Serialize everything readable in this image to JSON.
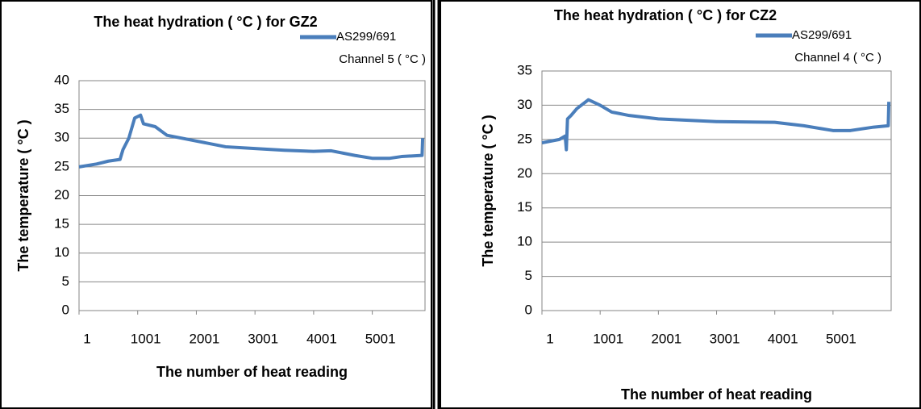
{
  "chart_data": [
    {
      "type": "line",
      "title": "The heat hydration ( °C ) for GZ2",
      "x_label": "The number of heat reading",
      "y_label": "The temperature ( °C )",
      "x": [
        1,
        300,
        500,
        700,
        750,
        850,
        950,
        1050,
        1100,
        1300,
        1500,
        2000,
        2500,
        3000,
        3500,
        4000,
        4300,
        4700,
        5000,
        5300,
        5500,
        5850,
        5860
      ],
      "series": [
        {
          "name": "AS299/691",
          "legend_note": "Channel 5 ( °C )",
          "color": "#4a7ebb",
          "values": [
            25,
            25.5,
            26,
            26.3,
            28,
            30,
            33.5,
            34,
            32.5,
            32,
            30.5,
            29.5,
            28.5,
            28.2,
            27.9,
            27.7,
            27.8,
            27,
            26.5,
            26.5,
            26.8,
            27,
            30
          ]
        }
      ],
      "xlim": [
        1,
        5900
      ],
      "xticks": [
        1,
        1001,
        2001,
        3001,
        4001,
        5001
      ],
      "ylim": [
        0,
        40
      ],
      "yticks": [
        0,
        5,
        10,
        15,
        20,
        25,
        30,
        35,
        40
      ],
      "grid": true
    },
    {
      "type": "line",
      "title": "The heat hydration ( °C ) for CZ2",
      "x_label": "The number of heat reading",
      "y_label": "The temperature ( °C )",
      "x": [
        1,
        300,
        400,
        420,
        440,
        500,
        600,
        800,
        1000,
        1200,
        1500,
        2000,
        3000,
        4000,
        4500,
        5000,
        5300,
        5700,
        5950,
        5960
      ],
      "series": [
        {
          "name": "AS299/691",
          "legend_note": "Channel 4 ( °C )",
          "color": "#4a7ebb",
          "values": [
            24.5,
            25,
            25.5,
            23.5,
            28,
            28.5,
            29.5,
            30.8,
            30,
            29,
            28.5,
            28,
            27.6,
            27.5,
            27,
            26.3,
            26.3,
            26.8,
            27,
            30.5
          ]
        }
      ],
      "xlim": [
        1,
        6000
      ],
      "xticks": [
        1,
        1001,
        2001,
        3001,
        4001,
        5001
      ],
      "ylim": [
        0,
        35
      ],
      "yticks": [
        0,
        5,
        10,
        15,
        20,
        25,
        30,
        35
      ],
      "grid": true
    }
  ]
}
